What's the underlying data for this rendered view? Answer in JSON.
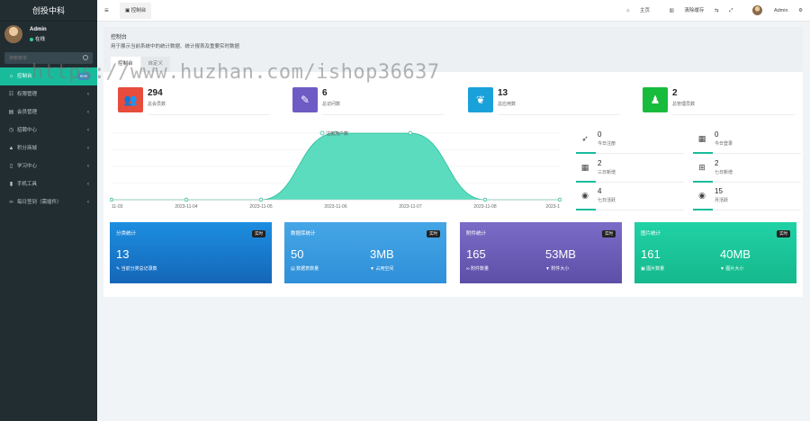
{
  "sidebar": {
    "logo": "创投中科",
    "user": {
      "name": "Admin",
      "status": "在线"
    },
    "search_placeholder": "搜索菜单",
    "items": [
      {
        "label": "控制台",
        "badge": "new",
        "icon": "dashboard-icon"
      },
      {
        "label": "权限管理",
        "icon": "users-icon"
      },
      {
        "label": "会员管理",
        "icon": "list-icon"
      },
      {
        "label": "招聘中心",
        "icon": "clock-icon"
      },
      {
        "label": "积分商城",
        "icon": "shop-icon"
      },
      {
        "label": "学习中心",
        "icon": "book-icon"
      },
      {
        "label": "手机工具",
        "icon": "mobile-icon"
      },
      {
        "label": "每日签到（需插件）",
        "icon": "link-icon"
      }
    ]
  },
  "topbar": {
    "tab_label": "控制台",
    "home": "主页",
    "clear_cache": "清除缓存",
    "admin": "Admin"
  },
  "panel": {
    "title": "控制台",
    "desc": "用于展示当前系统中的统计数据、统计报表及重要实时数据",
    "tabs": [
      "控制台",
      "自定义"
    ]
  },
  "stats": [
    {
      "value": "294",
      "label": "总会员数",
      "color": "#e74c3c",
      "icon": "users-icon"
    },
    {
      "value": "6",
      "label": "总访问数",
      "color": "#6f5bc4",
      "icon": "magic-icon"
    },
    {
      "value": "13",
      "label": "总应用数",
      "color": "#1aa1d9",
      "icon": "leaf-icon"
    },
    {
      "value": "2",
      "label": "总管理员数",
      "color": "#18bc3c",
      "icon": "user-icon"
    }
  ],
  "mini_stats": [
    {
      "value": "0",
      "label": "今日注册",
      "icon": "rocket-icon"
    },
    {
      "value": "0",
      "label": "今日登录",
      "icon": "id-card-icon"
    },
    {
      "value": "2",
      "label": "三日新增",
      "icon": "calendar-icon"
    },
    {
      "value": "2",
      "label": "七日新增",
      "icon": "calendar-plus-icon"
    },
    {
      "value": "4",
      "label": "七日活跃",
      "icon": "user-circle-icon"
    },
    {
      "value": "15",
      "label": "月活跃",
      "icon": "user-circle-icon"
    }
  ],
  "chart_data": {
    "type": "area",
    "legend": "注册用户数",
    "x": [
      "11-03",
      "2023-11-04",
      "2023-11-05",
      "2023-11-06",
      "2023-11-07",
      "2023-11-08",
      "2023-1"
    ],
    "values": [
      0,
      0,
      0,
      2,
      2,
      0,
      0
    ],
    "color": "#3fd6b4"
  },
  "cards": [
    {
      "title": "分类统计",
      "badge": "实时",
      "v1": "13",
      "v2": "",
      "l1": "当前分类总记录数",
      "l2": "",
      "color": "#1c7fd1"
    },
    {
      "title": "数据库统计",
      "badge": "实时",
      "v1": "50",
      "v2": "3MB",
      "l1": "数据表数量",
      "l2": "占用空间",
      "color": "#3a9be0"
    },
    {
      "title": "附件统计",
      "badge": "实时",
      "v1": "165",
      "v2": "53MB",
      "l1": "附件数量",
      "l2": "附件大小",
      "color": "#6d5bb5"
    },
    {
      "title": "图片统计",
      "badge": "实时",
      "v1": "161",
      "v2": "40MB",
      "l1": "图片数量",
      "l2": "图片大小",
      "color": "#1cc79a"
    }
  ],
  "watermark": "https://www.huzhan.com/ishop36637"
}
